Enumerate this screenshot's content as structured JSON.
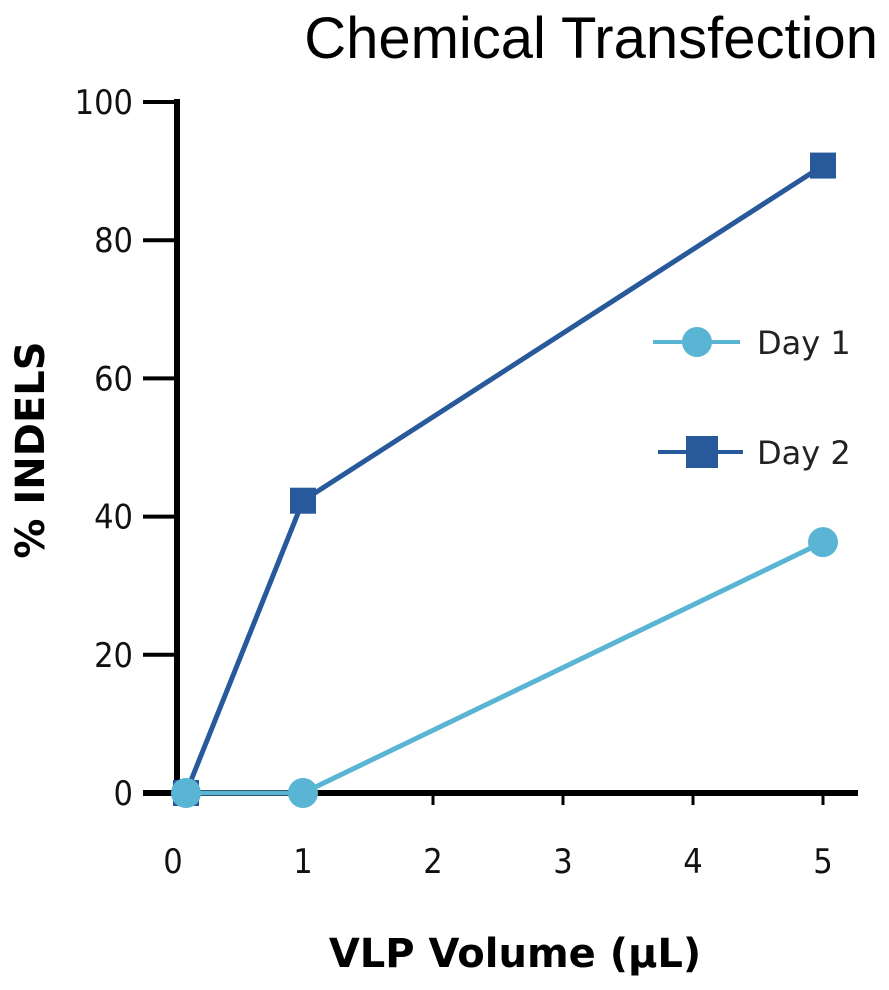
{
  "chart_data": {
    "type": "line",
    "title": "Chemical Transfection",
    "xlabel": "VLP Volume (µL)",
    "ylabel": "% INDELS",
    "xlim": [
      0,
      5
    ],
    "ylim": [
      0,
      100
    ],
    "xticks": [
      "0",
      "1",
      "2",
      "3",
      "4",
      "5"
    ],
    "yticks": [
      "0",
      "20",
      "40",
      "60",
      "80",
      "100"
    ],
    "grid": false,
    "legend_position": "right",
    "series": [
      {
        "name": "Day 1",
        "color": "#5ab4d3",
        "marker": "circle",
        "x": [
          0.1,
          1,
          5
        ],
        "y": [
          0,
          0,
          36.3
        ]
      },
      {
        "name": "Day 2",
        "color": "#27599b",
        "marker": "square",
        "x": [
          0.1,
          1,
          5
        ],
        "y": [
          0,
          42.3,
          90.8
        ]
      }
    ]
  }
}
